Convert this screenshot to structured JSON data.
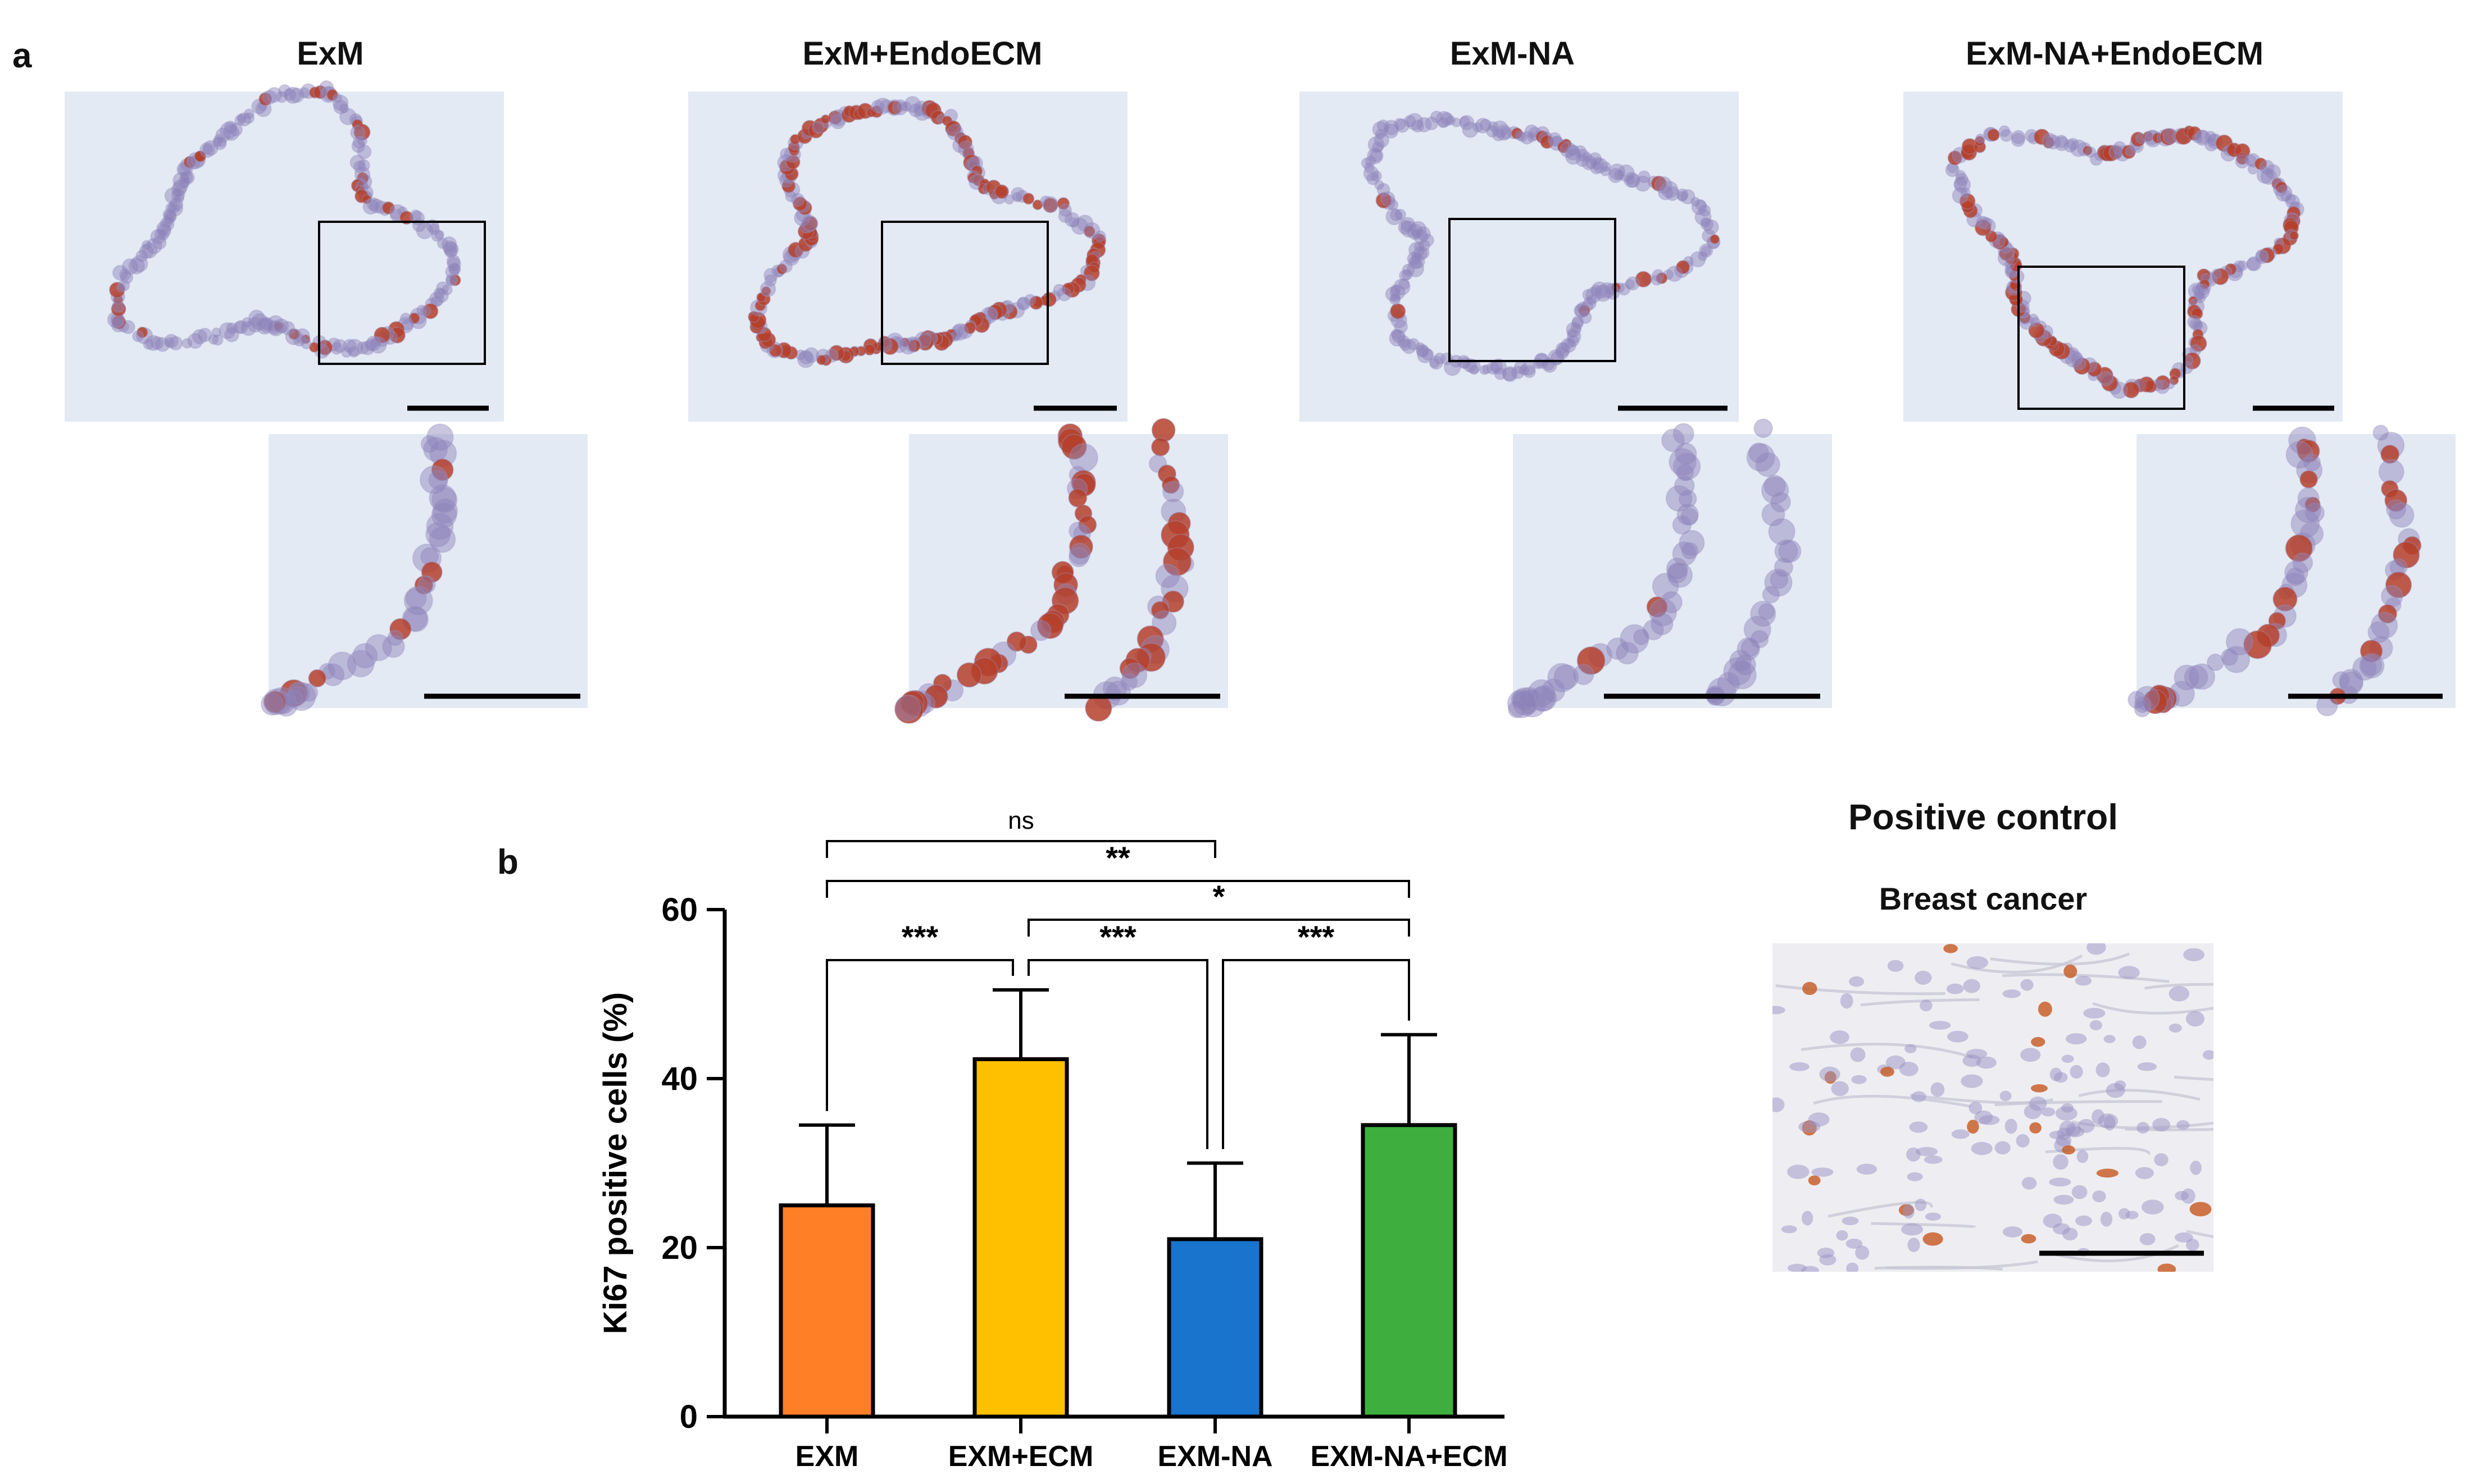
{
  "panels": {
    "a": "a",
    "b": "b"
  },
  "micrographs": {
    "columns": [
      {
        "title": "ExM",
        "tone": "low"
      },
      {
        "title": "ExM+EndoECM",
        "tone": "high"
      },
      {
        "title": "ExM-NA",
        "tone": "blue"
      },
      {
        "title": "ExM-NA+EndoECM",
        "tone": "mid"
      }
    ]
  },
  "positive_control": {
    "title": "Positive control",
    "subtitle": "Breast cancer"
  },
  "colors": {
    "EXM": "#FF7F27",
    "EXM+ECM": "#FFC000",
    "EXM-NA": "#1874CD",
    "EXM-NA+ECM": "#3EAE3E",
    "tissue_bg": "#E3EAF4",
    "hematoxylin": "#8C80B8",
    "dab": "#B5402A"
  },
  "chart_data": {
    "type": "bar",
    "categories": [
      "EXM",
      "EXM+ECM",
      "EXM-NA",
      "EXM-NA+ECM"
    ],
    "values": [
      25,
      42.3,
      21,
      34.5
    ],
    "error_upper": [
      34.5,
      50.5,
      30,
      45.2
    ],
    "ylabel": "Ki67 positive cells (%)",
    "ylim": [
      0,
      60
    ],
    "yticks": [
      0,
      20,
      40,
      60
    ],
    "significance": [
      {
        "from": 0,
        "to": 2,
        "label": "ns"
      },
      {
        "from": 0,
        "to": 3,
        "label": "**"
      },
      {
        "from": 1,
        "to": 3,
        "label": "*"
      },
      {
        "from": 0,
        "to": 1,
        "label": "***"
      },
      {
        "from": 1,
        "to": 2,
        "label": "***"
      },
      {
        "from": 2,
        "to": 3,
        "label": "***"
      }
    ]
  }
}
